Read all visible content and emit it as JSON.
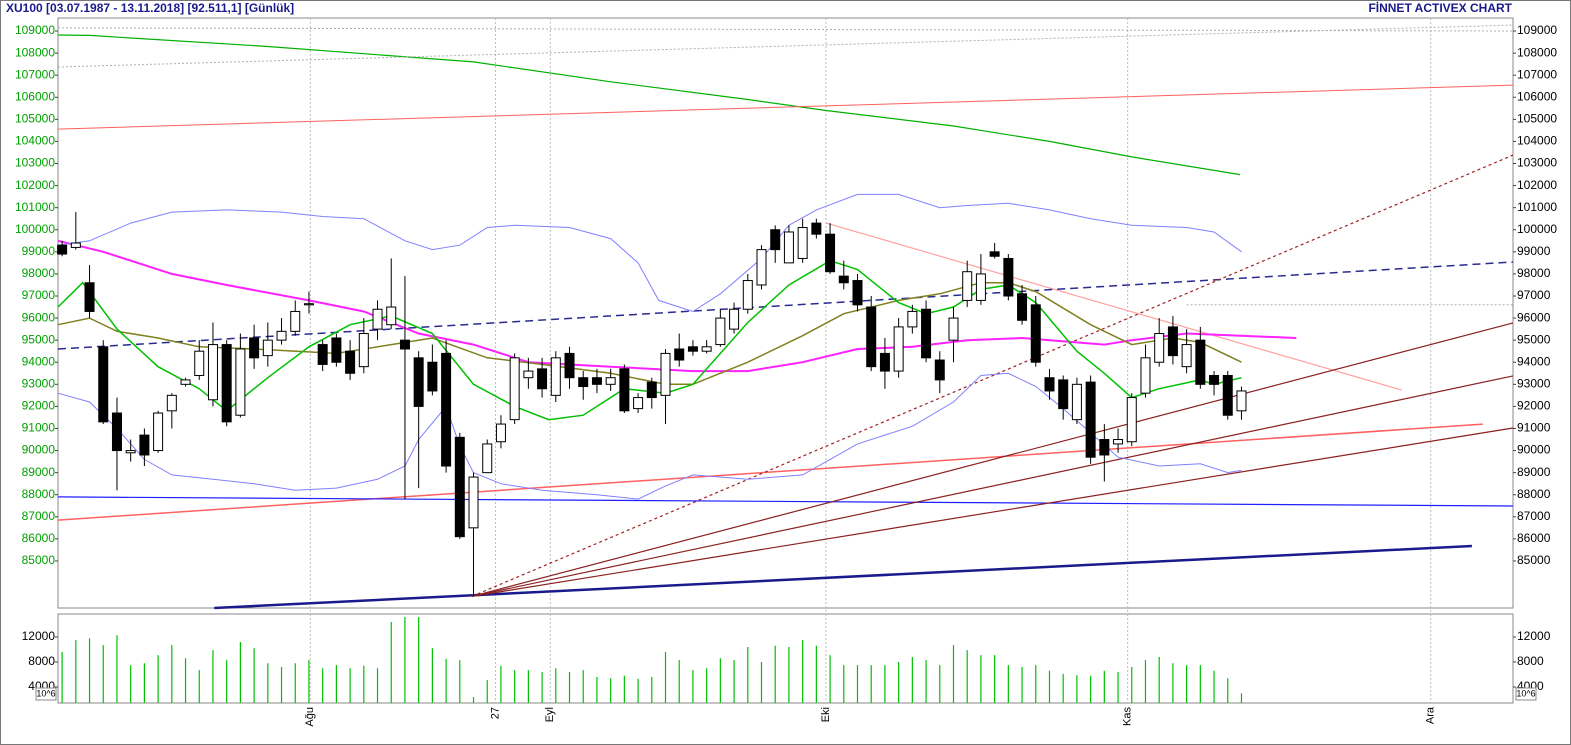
{
  "chart_data": [
    {
      "type": "candlestick",
      "title": "XU100  [03.07.1987 - 13.11.2018]  [92.511,1]  [Günlük]",
      "brand": "FİNNET ACTIVEX CHART",
      "up_color": "#ffffff",
      "down_color": "#000000",
      "axis_color": "#00a000",
      "xlim": [
        -0.3,
        105.8
      ],
      "ylim": [
        82870,
        109590
      ],
      "yticks": [
        85000,
        86000,
        87000,
        88000,
        89000,
        90000,
        91000,
        92000,
        93000,
        94000,
        95000,
        96000,
        97000,
        98000,
        99000,
        100000,
        101000,
        102000,
        103000,
        104000,
        105000,
        106000,
        107000,
        108000,
        109000
      ],
      "xticks": [
        {
          "value": 18.1,
          "label": "Ağu"
        },
        {
          "value": 31.6,
          "label": "27"
        },
        {
          "value": 35.6,
          "label": "Eyl"
        },
        {
          "value": 55.7,
          "label": "Eki"
        },
        {
          "value": 77.7,
          "label": "Kas"
        },
        {
          "value": 99.8,
          "label": "Ara"
        }
      ],
      "open": [
        99300,
        99200,
        97600,
        94700,
        91700,
        89900,
        90700,
        90000,
        91800,
        93000,
        93400,
        92300,
        94800,
        91600,
        95100,
        94300,
        95000,
        95400,
        96600,
        94800,
        95100,
        94500,
        93800,
        95500,
        95700,
        95000,
        94200,
        94000,
        94400,
        90600,
        86500,
        89000,
        90400,
        91400,
        93300,
        93700,
        92500,
        94400,
        93300,
        93300,
        93000,
        93700,
        91900,
        93100,
        92500,
        94600,
        94700,
        94500,
        94800,
        95500,
        96400,
        97500,
        100000,
        98500,
        98700,
        100300,
        99800,
        97900,
        97700,
        96500,
        94400,
        93600,
        95600,
        96400,
        94100,
        95000,
        96800,
        96800,
        99000,
        98700,
        97100,
        96600,
        93300,
        93200,
        91400,
        93100,
        90500,
        90300,
        90400,
        92600,
        94000,
        95600,
        93800,
        95000,
        93400,
        93400,
        91800
      ],
      "high": [
        99500,
        100800,
        98400,
        95000,
        92400,
        90500,
        91000,
        91800,
        92600,
        93300,
        95000,
        95800,
        95000,
        95300,
        95700,
        95800,
        96000,
        96800,
        97200,
        95000,
        95300,
        95000,
        96000,
        96800,
        98700,
        97900,
        94500,
        94800,
        95000,
        90800,
        89000,
        90500,
        91600,
        94400,
        94200,
        94200,
        94500,
        94700,
        93600,
        93700,
        93700,
        93900,
        92600,
        93300,
        94600,
        95300,
        95000,
        95000,
        96400,
        96700,
        98000,
        99300,
        100200,
        100200,
        100500,
        100500,
        100300,
        98600,
        98000,
        97000,
        95100,
        96000,
        96600,
        96800,
        94500,
        96500,
        98600,
        98900,
        99400,
        98900,
        97500,
        97000,
        93700,
        93400,
        93300,
        93400,
        91200,
        91000,
        92600,
        94800,
        96000,
        96100,
        95500,
        95600,
        93600,
        93600,
        92900
      ],
      "low": [
        98800,
        99100,
        96000,
        91200,
        88200,
        89500,
        89300,
        89900,
        91000,
        92900,
        93200,
        92000,
        91100,
        91500,
        93700,
        93800,
        94800,
        95200,
        96200,
        93600,
        93800,
        93200,
        93500,
        95000,
        95500,
        87800,
        88300,
        92500,
        89000,
        86000,
        83400,
        89000,
        90100,
        91200,
        92800,
        92400,
        92200,
        92800,
        92300,
        92600,
        92700,
        91700,
        91700,
        91900,
        91200,
        93800,
        94300,
        94400,
        94700,
        95300,
        96200,
        97300,
        98500,
        98500,
        98500,
        99600,
        98000,
        97300,
        96300,
        93600,
        92800,
        93300,
        95300,
        94000,
        92600,
        94000,
        96500,
        96600,
        98700,
        96800,
        95700,
        93800,
        92300,
        91400,
        91200,
        89400,
        88600,
        89900,
        90200,
        92400,
        93800,
        93900,
        93500,
        92800,
        92500,
        91400,
        91400
      ],
      "close": [
        98900,
        99400,
        96300,
        91300,
        90000,
        90000,
        89800,
        91700,
        92500,
        93200,
        94500,
        94800,
        91300,
        94600,
        94200,
        95000,
        95400,
        96300,
        96650,
        93900,
        94000,
        93500,
        95300,
        96400,
        96500,
        94600,
        92000,
        92700,
        89300,
        86100,
        88800,
        90300,
        91200,
        94200,
        93600,
        92800,
        94200,
        93300,
        92900,
        93000,
        93300,
        91800,
        92400,
        92400,
        94400,
        94100,
        94500,
        94700,
        96000,
        96400,
        97700,
        99100,
        99100,
        99900,
        100100,
        99800,
        98100,
        97600,
        96600,
        93800,
        93600,
        95600,
        96300,
        94200,
        93200,
        96000,
        98100,
        98000,
        98800,
        97000,
        95900,
        94000,
        92700,
        91900,
        93000,
        89700,
        89800,
        90500,
        92400,
        94200,
        95300,
        94300,
        94800,
        93000,
        93000,
        91600,
        92700
      ],
      "lines": [
        {
          "color": "#00b000",
          "width": 1.2,
          "dash": "none",
          "x": [
            -0.3,
            2,
            15,
            30,
            40,
            50,
            55.7,
            65,
            72,
            78,
            85.9
          ],
          "values": [
            108820,
            108800,
            108300,
            107600,
            106700,
            105900,
            105400,
            104700,
            104000,
            103300,
            102500
          ]
        },
        {
          "color": "#ff6060",
          "width": 1,
          "dash": "none",
          "x": [
            -0.3,
            105.8
          ],
          "values": [
            104560,
            106550
          ]
        },
        {
          "color": "#ff6060",
          "width": 1.5,
          "dash": "none",
          "x": [
            -0.3,
            103.6
          ],
          "values": [
            86850,
            91200
          ]
        },
        {
          "color": "#ffa0a0",
          "width": 1.2,
          "dash": "none",
          "x": [
            55.7,
            97.7
          ],
          "values": [
            100300,
            92740
          ]
        },
        {
          "color": "#b0b0b0",
          "width": 1,
          "dash": "2,2",
          "x": [
            -0.3,
            105.8
          ],
          "values": [
            107370,
            109270
          ]
        },
        {
          "color": "#b0b0b0",
          "width": 1,
          "dash": "2,2",
          "x": [
            -0.3,
            105.8
          ],
          "values": [
            109140,
            109000
          ]
        },
        {
          "color": "#b0b0b0",
          "width": 1,
          "dash": "2,2",
          "x": [
            82,
            105.8
          ],
          "values": [
            96600,
            96600
          ]
        },
        {
          "color": "#2020ff",
          "width": 1.2,
          "dash": "none",
          "x": [
            -0.3,
            105.8
          ],
          "values": [
            87900,
            87490
          ]
        },
        {
          "color": "#2a2a90",
          "width": 1.5,
          "dash": "8,5",
          "x": [
            -0.3,
            105.8
          ],
          "values": [
            94600,
            98540
          ]
        },
        {
          "color": "#1a1a8c",
          "width": 2.5,
          "dash": "none",
          "x": [
            11.1,
            102.8
          ],
          "values": [
            82870,
            85680
          ]
        },
        {
          "color": "#a02020",
          "width": 1.2,
          "dash": "3,3",
          "x": [
            29.9,
            105.8
          ],
          "values": [
            83400,
            103380
          ]
        },
        {
          "color": "#8b2020",
          "width": 1.2,
          "dash": "none",
          "x": [
            29.9,
            105.8
          ],
          "values": [
            83400,
            95780
          ]
        },
        {
          "color": "#8b2020",
          "width": 1.2,
          "dash": "none",
          "x": [
            29.9,
            105.8
          ],
          "values": [
            83400,
            93380
          ]
        },
        {
          "color": "#8b2020",
          "width": 1.2,
          "dash": "none",
          "x": [
            29.9,
            105.8
          ],
          "values": [
            83400,
            91020
          ]
        },
        {
          "color": "#ff20ff",
          "width": 2,
          "dash": "none",
          "x": [
            -0.3,
            3,
            8,
            12,
            18,
            22,
            26,
            30,
            34,
            40,
            46,
            50,
            54,
            58,
            62,
            66,
            70,
            76,
            78,
            82,
            90
          ],
          "values": [
            99500,
            99000,
            98000,
            97500,
            96800,
            96300,
            95300,
            94800,
            94000,
            93800,
            93600,
            93600,
            94000,
            94600,
            94700,
            95000,
            95100,
            94800,
            95000,
            95300,
            95100
          ]
        },
        {
          "color": "#808020",
          "width": 1.5,
          "dash": "none",
          "x": [
            -0.3,
            2,
            4,
            7,
            10,
            14,
            20,
            24,
            27,
            31,
            35,
            40,
            44,
            46,
            50,
            54,
            57,
            61,
            64,
            67,
            69,
            71,
            75,
            78,
            81,
            83,
            86
          ],
          "values": [
            95700,
            96000,
            95400,
            95100,
            94700,
            94600,
            94400,
            94800,
            95100,
            94200,
            93900,
            93500,
            93000,
            93000,
            94000,
            95200,
            96200,
            96800,
            97100,
            97600,
            97600,
            97200,
            95700,
            94800,
            95100,
            94900,
            94000
          ]
        },
        {
          "color": "#00c000",
          "width": 1.5,
          "dash": "none",
          "x": [
            -0.3,
            1.5,
            4,
            7,
            10,
            12,
            15,
            18,
            21,
            24,
            27,
            30,
            33,
            35.5,
            38,
            41,
            44,
            46,
            50,
            53,
            56,
            58,
            61,
            63,
            65,
            67,
            69,
            71,
            74,
            76,
            78,
            80,
            83,
            84,
            86
          ],
          "values": [
            96500,
            97600,
            95500,
            93800,
            92800,
            91800,
            93300,
            94700,
            95700,
            96100,
            95300,
            93000,
            92000,
            91400,
            91600,
            92800,
            92600,
            93000,
            95800,
            97500,
            98600,
            98200,
            96700,
            96200,
            96500,
            97300,
            97500,
            96700,
            94500,
            93500,
            92400,
            92800,
            93200,
            93000,
            93300
          ]
        },
        {
          "color": "#8080ff",
          "width": 1,
          "dash": "none",
          "x": [
            -0.3,
            2,
            5,
            8,
            12,
            16,
            19,
            22,
            25,
            27,
            29,
            31,
            33,
            37,
            40,
            42,
            43.5,
            46,
            48,
            51,
            53,
            55,
            58,
            61,
            64,
            66,
            69,
            72,
            75,
            78,
            82,
            84,
            86
          ],
          "values": [
            99300,
            99500,
            100300,
            100800,
            100900,
            100800,
            100600,
            100500,
            99500,
            99100,
            99300,
            100100,
            100200,
            100100,
            99600,
            98500,
            96800,
            96300,
            97100,
            98700,
            100200,
            100900,
            101600,
            101600,
            101000,
            101100,
            101200,
            100900,
            100500,
            100200,
            100100,
            99900,
            99000
          ]
        },
        {
          "color": "#8080ff",
          "width": 1,
          "dash": "none",
          "x": [
            -0.3,
            2,
            4,
            6,
            8,
            11,
            14,
            17,
            20,
            23,
            25,
            26,
            28,
            29,
            30,
            32,
            35,
            39,
            42,
            44,
            46,
            50,
            54,
            56,
            58,
            62,
            65,
            67,
            69,
            71,
            73,
            75,
            77,
            80,
            83,
            85,
            86
          ],
          "values": [
            92600,
            92200,
            91000,
            89600,
            88900,
            88700,
            88500,
            88200,
            88300,
            88700,
            89300,
            90500,
            92000,
            90200,
            89000,
            88500,
            88200,
            88000,
            87800,
            88400,
            88900,
            88700,
            88900,
            89600,
            90300,
            91100,
            92200,
            93400,
            93500,
            92900,
            91900,
            90800,
            89700,
            89300,
            89400,
            89000,
            89100
          ]
        }
      ]
    },
    {
      "type": "bar",
      "color": "#00c000",
      "unit": "10^6",
      "xlim": [
        -0.3,
        105.8
      ],
      "ylim": [
        1440,
        15680
      ],
      "yticks": [
        4000,
        8000,
        12000
      ],
      "values": [
        9600,
        11500,
        11800,
        10700,
        12300,
        7500,
        7800,
        9100,
        10700,
        8600,
        6700,
        9900,
        8300,
        11200,
        10200,
        7800,
        7200,
        7800,
        8300,
        7000,
        7500,
        7000,
        7400,
        7000,
        14400,
        15200,
        15200,
        10200,
        8500,
        8300,
        2400,
        5100,
        7400,
        6700,
        6700,
        6400,
        7000,
        6400,
        6700,
        5600,
        5400,
        5800,
        5300,
        5600,
        9600,
        8300,
        6700,
        7000,
        8600,
        8300,
        10400,
        8000,
        10600,
        10400,
        11500,
        10600,
        9100,
        7500,
        7500,
        7500,
        7500,
        8000,
        8800,
        8300,
        7500,
        10700,
        9900,
        9100,
        9100,
        7500,
        7200,
        7500,
        6600,
        6100,
        5900,
        5800,
        6600,
        6400,
        7200,
        8300,
        8800,
        7800,
        7500,
        7500,
        6600,
        5400,
        3000
      ]
    }
  ]
}
